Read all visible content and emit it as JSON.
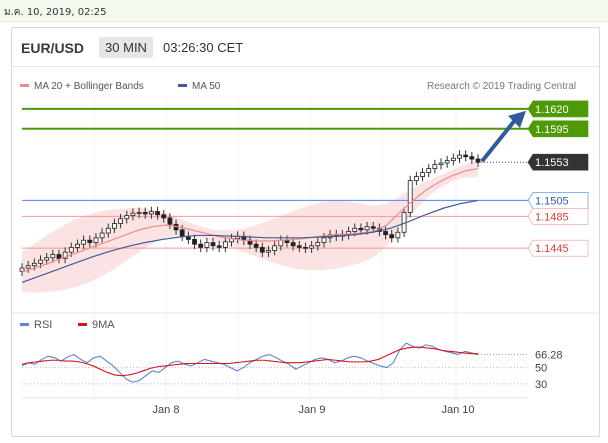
{
  "topbar": {
    "date": "ม.ค. 10, 2019, 02:25"
  },
  "header": {
    "symbol": "EUR/USD",
    "timeframe": "30 MIN",
    "time": "03:26:30 CET"
  },
  "legend": {
    "items": [
      {
        "label": "MA 20 + Bollinger Bands",
        "color": "#f08a8a"
      },
      {
        "label": "MA 50",
        "color": "#3e5c9a"
      }
    ],
    "credit": "Research © 2019 Trading Central"
  },
  "colors": {
    "green": "#4d9a06",
    "blue_level": "#4a86e8",
    "red_level": "#f29a9a",
    "price_tag": "#333333",
    "bb_band": "#fbd9d9",
    "ma20": "#f08a8a",
    "ma50": "#3e5c9a",
    "rsi": "#5b84d4",
    "rsi_ma": "#d9121f",
    "arrow": "#2e5b9b"
  },
  "chart_data": [
    {
      "type": "line",
      "title": "EUR/USD",
      "xticks": [
        "Jan 8",
        "Jan 9",
        "Jan 10"
      ],
      "ylim": [
        1.1405,
        1.164
      ],
      "levels": [
        {
          "value": 1.162,
          "label": "1.1620",
          "kind": "resistance-target"
        },
        {
          "value": 1.1595,
          "label": "1.1595",
          "kind": "resistance-target"
        },
        {
          "value": 1.1553,
          "label": "1.1553",
          "kind": "last-price"
        },
        {
          "value": 1.1505,
          "label": "1.1505",
          "kind": "pivot"
        },
        {
          "value": 1.1485,
          "label": "1.1485",
          "kind": "support"
        },
        {
          "value": 1.1445,
          "label": "1.1445",
          "kind": "support"
        }
      ],
      "series": [
        {
          "name": "EUR/USD",
          "values": [
            1.142,
            1.1423,
            1.1426,
            1.143,
            1.1433,
            1.1437,
            1.1432,
            1.144,
            1.1446,
            1.145,
            1.1455,
            1.1452,
            1.1458,
            1.1464,
            1.147,
            1.1476,
            1.1482,
            1.1486,
            1.1489,
            1.149,
            1.1488,
            1.1491,
            1.1487,
            1.1483,
            1.1475,
            1.1468,
            1.146,
            1.1456,
            1.145,
            1.1446,
            1.1452,
            1.1448,
            1.1446,
            1.1453,
            1.1457,
            1.146,
            1.1455,
            1.145,
            1.1446,
            1.144,
            1.1442,
            1.1448,
            1.1455,
            1.1452,
            1.1448,
            1.1446,
            1.1445,
            1.1448,
            1.1452,
            1.1458,
            1.1462,
            1.146,
            1.1462,
            1.1466,
            1.147,
            1.1468,
            1.1472,
            1.147,
            1.1466,
            1.1462,
            1.1458,
            1.1465,
            1.149,
            1.153,
            1.1535,
            1.154,
            1.1545,
            1.155,
            1.1552,
            1.1555,
            1.1558,
            1.1562,
            1.156,
            1.1557,
            1.1553
          ]
        },
        {
          "name": "MA 20",
          "values": [
            1.1415,
            1.142,
            1.1426,
            1.1432,
            1.1438,
            1.1444,
            1.145,
            1.1456,
            1.1462,
            1.1468,
            1.1472,
            1.1474,
            1.1472,
            1.1468,
            1.1464,
            1.146,
            1.1457,
            1.1455,
            1.1454,
            1.1454,
            1.1455,
            1.1456,
            1.1458,
            1.146,
            1.1462,
            1.1463,
            1.1464,
            1.1466,
            1.1474,
            1.149,
            1.1505,
            1.1518,
            1.1528,
            1.1536,
            1.1542,
            1.1545
          ]
        },
        {
          "name": "MA 50",
          "values": [
            1.1402,
            1.141,
            1.1418,
            1.1426,
            1.1434,
            1.1441,
            1.1447,
            1.1452,
            1.1456,
            1.1459,
            1.1461,
            1.1461,
            1.146,
            1.1459,
            1.1458,
            1.1458,
            1.1458,
            1.1459,
            1.146,
            1.1462,
            1.1465,
            1.147,
            1.1478,
            1.1487,
            1.1495,
            1.1501,
            1.1505
          ]
        }
      ]
    },
    {
      "type": "line",
      "title": "RSI",
      "yticks": [
        30,
        50,
        66.28
      ],
      "ylim": [
        20,
        90
      ],
      "series": [
        {
          "name": "RSI",
          "values": [
            52,
            56,
            54,
            60,
            64,
            62,
            58,
            63,
            66,
            60,
            56,
            62,
            64,
            58,
            52,
            44,
            36,
            32,
            34,
            40,
            46,
            44,
            50,
            56,
            58,
            54,
            52,
            56,
            60,
            58,
            56,
            54,
            50,
            46,
            50,
            56,
            60,
            64,
            66,
            62,
            58,
            54,
            48,
            52,
            56,
            60,
            62,
            60,
            56,
            58,
            62,
            64,
            62,
            58,
            55,
            52,
            50,
            56,
            72,
            80,
            76,
            74,
            78,
            76,
            72,
            70,
            68,
            66,
            70,
            68,
            66
          ]
        },
        {
          "name": "9MA",
          "values": [
            54,
            56,
            57,
            58,
            59,
            59,
            58,
            58,
            57,
            55,
            52,
            48,
            44,
            41,
            40,
            41,
            43,
            46,
            49,
            51,
            52,
            53,
            54,
            55,
            55,
            55,
            55,
            55,
            55,
            55,
            56,
            57,
            58,
            59,
            59,
            58,
            57,
            56,
            56,
            56,
            57,
            58,
            59,
            60,
            59,
            58,
            57,
            57,
            57,
            58,
            60,
            64,
            68,
            72,
            74,
            75,
            75,
            74,
            73,
            71,
            70,
            69,
            68,
            67,
            67
          ]
        }
      ]
    }
  ]
}
